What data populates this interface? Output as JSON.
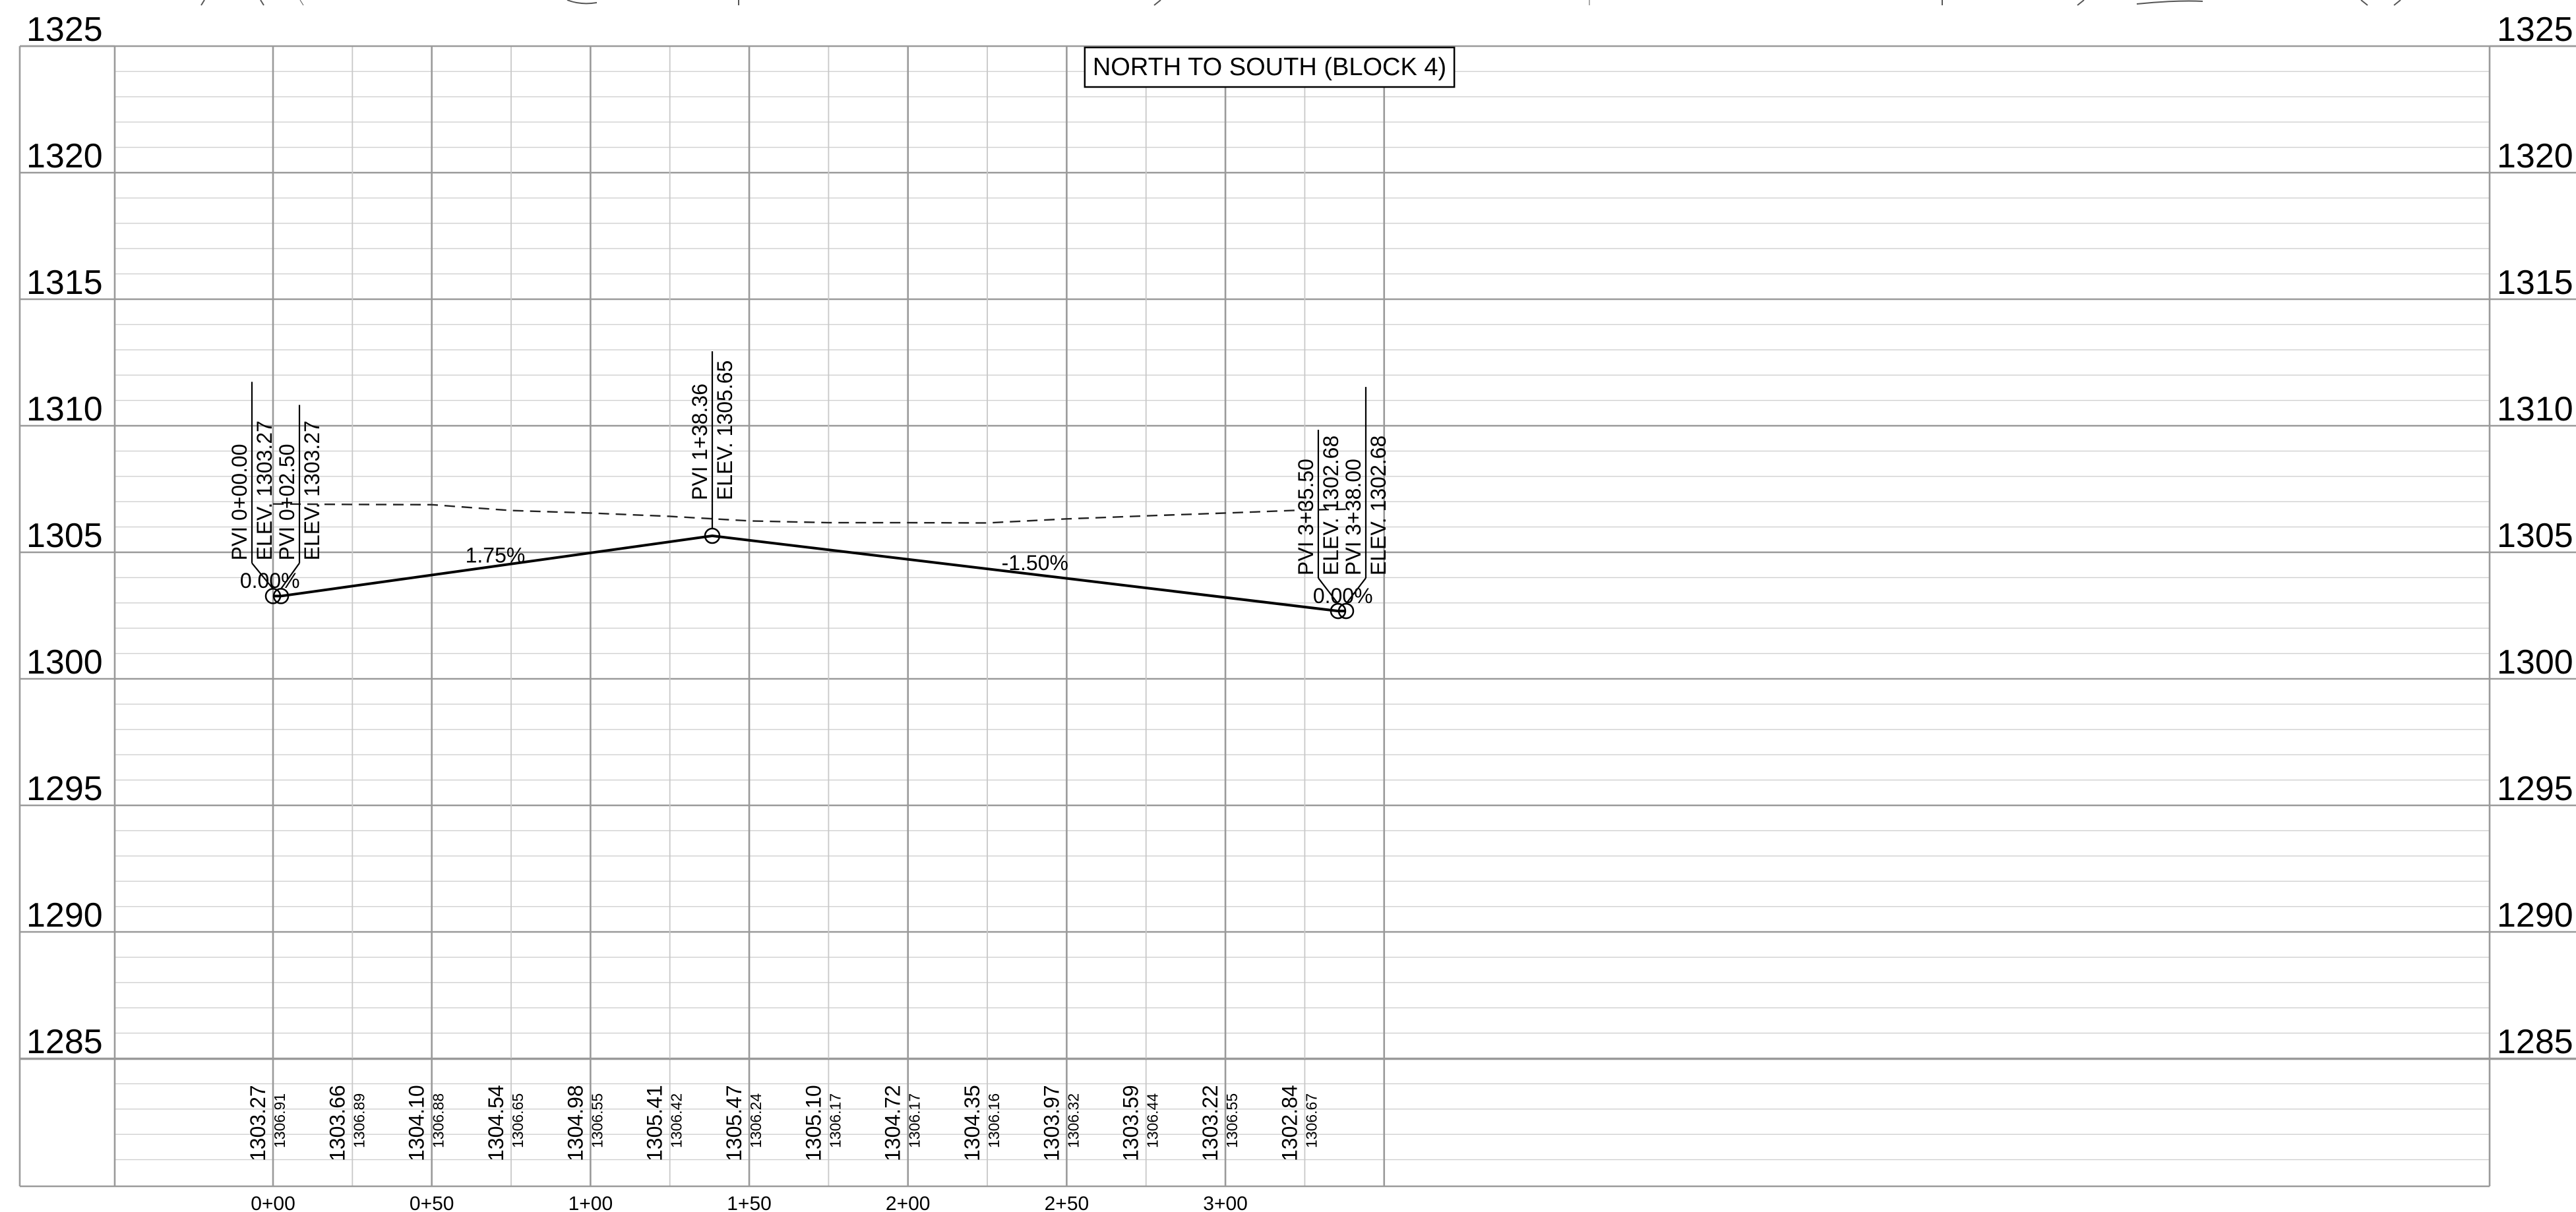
{
  "chart_data": {
    "type": "line",
    "title": "NORTH TO SOUTH (BLOCK 4)",
    "xlabel": "",
    "ylabel": "",
    "x_unit": "station (ft)",
    "xlim": [
      -25,
      387
    ],
    "ylim": [
      1280,
      1325
    ],
    "grid": true,
    "y_ticks": [
      1325,
      1320,
      1315,
      1310,
      1305,
      1300,
      1295,
      1290,
      1285
    ],
    "x_ticks": [
      {
        "x": 0,
        "label": "0+00"
      },
      {
        "x": 50,
        "label": "0+50"
      },
      {
        "x": 100,
        "label": "1+00"
      },
      {
        "x": 150,
        "label": "1+50"
      },
      {
        "x": 200,
        "label": "2+00"
      },
      {
        "x": 250,
        "label": "2+50"
      },
      {
        "x": 300,
        "label": "3+00"
      }
    ],
    "series": [
      {
        "style": "solid",
        "x": [
          0,
          2.5,
          138.36,
          335.5,
          338
        ],
        "y": [
          1303.27,
          1303.27,
          1305.65,
          1302.68,
          1302.68
        ]
      },
      {
        "style": "dashed",
        "x": [
          0,
          25,
          50,
          75,
          100,
          125,
          150,
          175,
          200,
          225,
          250,
          275,
          300,
          325,
          338
        ],
        "y": [
          1306.91,
          1306.89,
          1306.88,
          1306.65,
          1306.55,
          1306.42,
          1306.24,
          1306.17,
          1306.17,
          1306.16,
          1306.32,
          1306.44,
          1306.55,
          1306.67,
          1306.7
        ]
      }
    ],
    "pvis": [
      {
        "x": 0,
        "y": 1303.27,
        "station": "PVI 0+00.00",
        "elev": "ELEV. 1303.27"
      },
      {
        "x": 2.5,
        "y": 1303.27,
        "station": "PVI 0+02.50",
        "elev": "ELEV. 1303.27"
      },
      {
        "x": 138.36,
        "y": 1305.65,
        "station": "PVI 1+38.36",
        "elev": "ELEV. 1305.65"
      },
      {
        "x": 335.5,
        "y": 1302.68,
        "station": "PVI 3+35.50",
        "elev": "ELEV. 1302.68"
      },
      {
        "x": 338,
        "y": 1302.68,
        "station": "PVI 3+38.00",
        "elev": "ELEV. 1302.68"
      }
    ],
    "grade_labels": [
      {
        "x": -1,
        "y": 1303.6,
        "text": "0.00%"
      },
      {
        "x": 70,
        "y": 1304.6,
        "text": "1.75%"
      },
      {
        "x": 240,
        "y": 1304.3,
        "text": "-1.50%"
      },
      {
        "x": 337,
        "y": 1303.0,
        "text": "0.00%"
      }
    ],
    "bottom_labels": [
      {
        "x": 0,
        "design": "1303.27",
        "existing": "1306.91"
      },
      {
        "x": 25,
        "design": "1303.66",
        "existing": "1306.89"
      },
      {
        "x": 50,
        "design": "1304.10",
        "existing": "1306.88"
      },
      {
        "x": 75,
        "design": "1304.54",
        "existing": "1306.65"
      },
      {
        "x": 100,
        "design": "1304.98",
        "existing": "1306.55"
      },
      {
        "x": 125,
        "design": "1305.41",
        "existing": "1306.42"
      },
      {
        "x": 150,
        "design": "1305.47",
        "existing": "1306.24"
      },
      {
        "x": 175,
        "design": "1305.10",
        "existing": "1306.17"
      },
      {
        "x": 200,
        "design": "1304.72",
        "existing": "1306.17"
      },
      {
        "x": 225,
        "design": "1304.35",
        "existing": "1306.16"
      },
      {
        "x": 250,
        "design": "1303.97",
        "existing": "1306.32"
      },
      {
        "x": 275,
        "design": "1303.59",
        "existing": "1306.44"
      },
      {
        "x": 300,
        "design": "1303.22",
        "existing": "1306.55"
      },
      {
        "x": 325,
        "design": "1302.84",
        "existing": "1306.67"
      }
    ]
  }
}
